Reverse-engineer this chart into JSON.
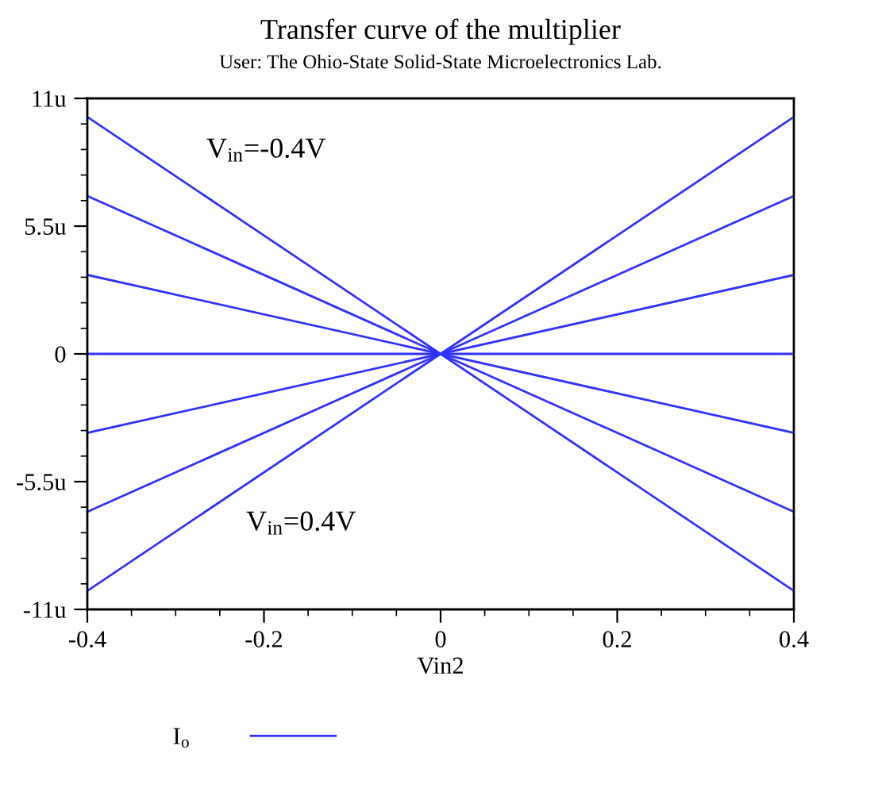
{
  "chart_data": {
    "type": "line",
    "title": "Transfer curve of the multiplier",
    "subtitle": "User: The Ohio-State Solid-State Microelectronics Lab.",
    "xlabel": "Vin2",
    "x": [
      -0.4,
      0.4
    ],
    "series": [
      {
        "name": "I$_{o}$",
        "color": "#3333ff",
        "values": [
          10.2,
          -10.2
        ]
      },
      {
        "color": "#3333ff",
        "values": [
          6.8,
          -6.8
        ]
      },
      {
        "color": "#3333ff",
        "values": [
          3.4,
          -3.4
        ]
      },
      {
        "color": "#3333ff",
        "values": [
          0,
          0
        ]
      },
      {
        "color": "#3333ff",
        "values": [
          -3.4,
          3.4
        ]
      },
      {
        "color": "#3333ff",
        "values": [
          -6.8,
          6.8
        ]
      },
      {
        "color": "#3333ff",
        "values": [
          -10.2,
          10.2
        ]
      }
    ],
    "annotations": [
      "V$_{in}$=-0.4V",
      "V$_{in}$=0.4V"
    ],
    "xlim": [
      -0.4,
      0.4
    ],
    "xticks": [
      -0.4,
      -0.2,
      0,
      0.2,
      0.4
    ],
    "ylim": [
      -11,
      11
    ],
    "yticks": [
      {
        "value": -11,
        "label": "-11u"
      },
      {
        "value": -5.5,
        "label": "-5.5u"
      },
      0,
      {
        "value": 5.5,
        "label": "5.5u"
      },
      {
        "value": 11,
        "label": "11u"
      }
    ],
    "grid": false,
    "legend": "bottom left",
    "marker": "none",
    "line_style": "solid"
  }
}
